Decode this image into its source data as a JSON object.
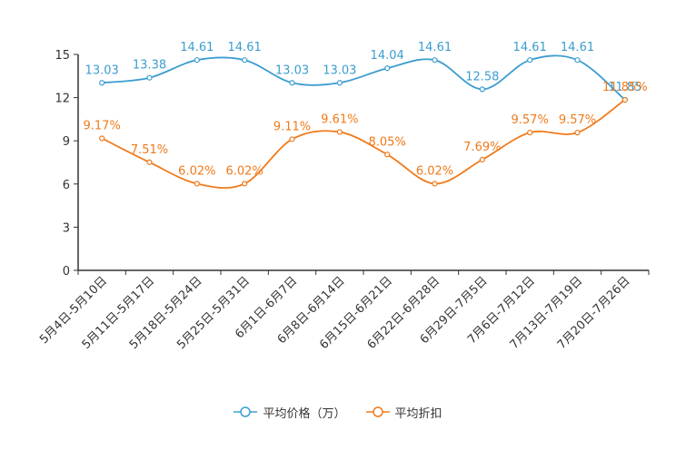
{
  "chart_data": {
    "type": "line",
    "categories": [
      "5月4日-5月10日",
      "5月11日-5月17日",
      "5月18日-5月24日",
      "5月25日-5月31日",
      "6月1日-6月7日",
      "6月8日-6月14日",
      "6月15日-6月21日",
      "6月22日-6月28日",
      "6月29日-7月5日",
      "7月6日-7月12日",
      "7月13日-7月19日",
      "7月20日-7月26日"
    ],
    "series": [
      {
        "name": "平均价格（万）",
        "color": "#3c9dd0",
        "values": [
          13.03,
          13.38,
          14.61,
          14.61,
          13.03,
          13.03,
          14.04,
          14.61,
          12.58,
          14.61,
          14.61,
          11.85
        ],
        "labels": [
          "13.03",
          "13.38",
          "14.61",
          "14.61",
          "13.03",
          "13.03",
          "14.04",
          "14.61",
          "12.58",
          "14.61",
          "14.61",
          "11.85"
        ]
      },
      {
        "name": "平均折扣",
        "color": "#f07a1a",
        "values": [
          9.17,
          7.51,
          6.02,
          6.02,
          9.11,
          9.61,
          8.05,
          6.02,
          7.69,
          9.57,
          9.57,
          11.85
        ],
        "labels": [
          "9.17%",
          "7.51%",
          "6.02%",
          "6.02%",
          "9.11%",
          "9.61%",
          "8.05%",
          "6.02%",
          "7.69%",
          "9.57%",
          "9.57%",
          "11.85%"
        ]
      }
    ],
    "yticks": [
      "0",
      "3",
      "6",
      "9",
      "12",
      "15"
    ],
    "ylim": [
      0,
      15
    ],
    "title": "",
    "xlabel": "",
    "ylabel": "",
    "legend_position": "bottom-center",
    "grid": false
  }
}
